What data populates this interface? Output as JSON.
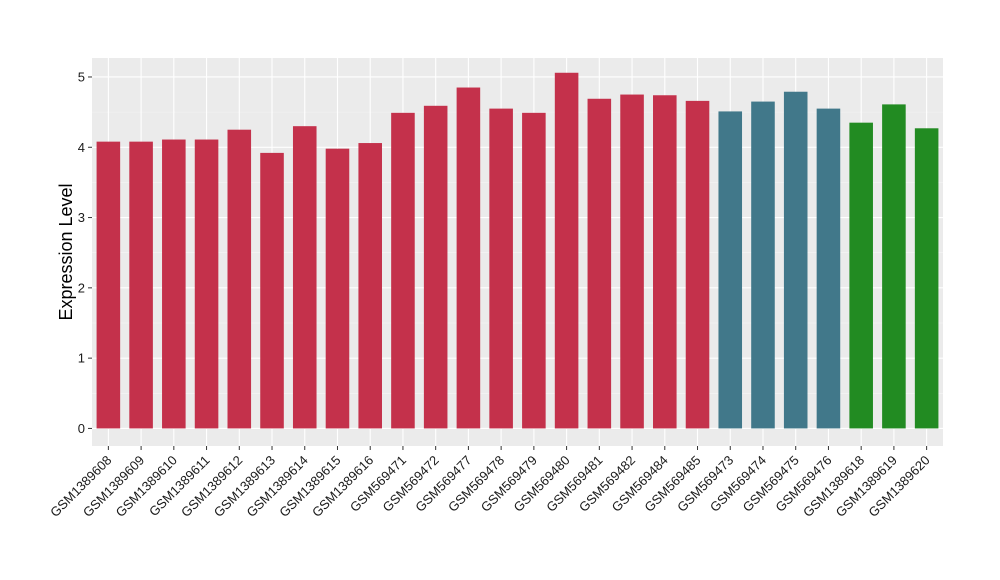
{
  "chart_data": {
    "type": "bar",
    "title": "",
    "xlabel": "",
    "ylabel": "Expression Level",
    "ylim": [
      -0.25,
      5.27
    ],
    "yticks": [
      0,
      1,
      2,
      3,
      4,
      5
    ],
    "grid": true,
    "legend": "none",
    "categories": [
      "GSM1389608",
      "GSM1389609",
      "GSM1389610",
      "GSM1389611",
      "GSM1389612",
      "GSM1389613",
      "GSM1389614",
      "GSM1389615",
      "GSM1389616",
      "GSM569471",
      "GSM569472",
      "GSM569477",
      "GSM569478",
      "GSM569479",
      "GSM569480",
      "GSM569481",
      "GSM569482",
      "GSM569484",
      "GSM569485",
      "GSM569473",
      "GSM569474",
      "GSM569475",
      "GSM569476",
      "GSM1389618",
      "GSM1389619",
      "GSM1389620"
    ],
    "values": [
      4.08,
      4.08,
      4.11,
      4.11,
      4.25,
      3.92,
      4.3,
      3.98,
      4.06,
      4.49,
      4.59,
      4.85,
      4.55,
      4.49,
      5.06,
      4.69,
      4.75,
      4.74,
      4.66,
      4.51,
      4.65,
      4.79,
      4.55,
      4.35,
      4.61,
      4.27
    ],
    "groups": [
      0,
      0,
      0,
      0,
      0,
      0,
      0,
      0,
      0,
      0,
      0,
      0,
      0,
      0,
      0,
      0,
      0,
      0,
      0,
      1,
      1,
      1,
      1,
      2,
      2,
      2
    ],
    "group_colors": [
      "#c4314b",
      "#41788a",
      "#228b22"
    ],
    "colors": {
      "panel_bg": "#ebebeb",
      "grid_major": "#ffffff",
      "grid_minor": "#f5f5f5",
      "tick": "#333333",
      "text": "#1a1a1a"
    }
  }
}
